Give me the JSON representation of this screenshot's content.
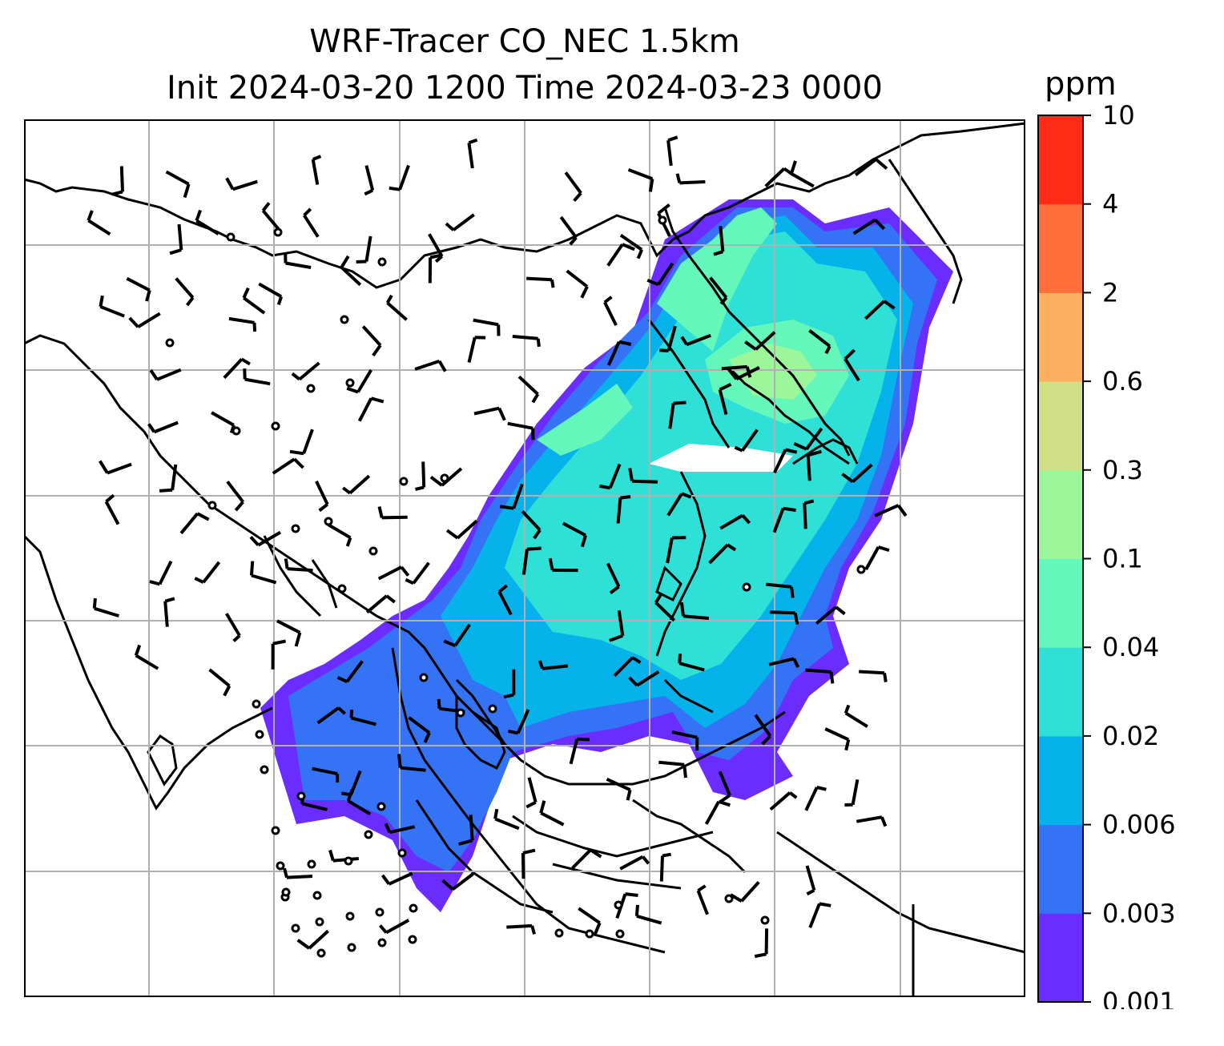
{
  "title": {
    "line1": "WRF-Tracer CO_NEC 1.5km",
    "line2": "Init 2024-03-20 1200 Time 2024-03-23 0000"
  },
  "colorbar": {
    "unit": "ppm",
    "levels": [
      "0.001",
      "0.003",
      "0.006",
      "0.02",
      "0.04",
      "0.1",
      "0.3",
      "0.6",
      "2",
      "4",
      "10"
    ],
    "colors": [
      "#6a2cff",
      "#3473f5",
      "#05b3ea",
      "#2ee0d6",
      "#64f7bb",
      "#9cf79a",
      "#d1e087",
      "#fcb060",
      "#ff6f3c",
      "#ff2c17"
    ]
  },
  "map": {
    "field": "CO_NEC tracer concentration",
    "level": "1.5km",
    "features": [
      "coastlines",
      "country-borders",
      "gridlines",
      "wind-barbs",
      "calm-circles"
    ]
  }
}
